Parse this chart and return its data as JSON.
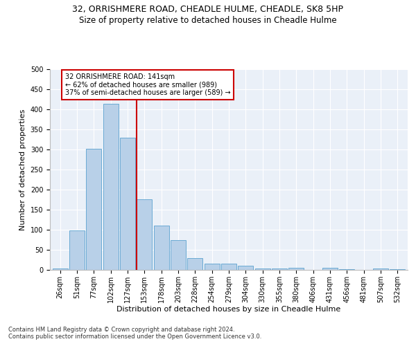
{
  "title1": "32, ORRISHMERE ROAD, CHEADLE HULME, CHEADLE, SK8 5HP",
  "title2": "Size of property relative to detached houses in Cheadle Hulme",
  "xlabel": "Distribution of detached houses by size in Cheadle Hulme",
  "ylabel": "Number of detached properties",
  "categories": [
    "26sqm",
    "51sqm",
    "77sqm",
    "102sqm",
    "127sqm",
    "153sqm",
    "178sqm",
    "203sqm",
    "228sqm",
    "254sqm",
    "279sqm",
    "304sqm",
    "330sqm",
    "355sqm",
    "380sqm",
    "406sqm",
    "431sqm",
    "456sqm",
    "481sqm",
    "507sqm",
    "532sqm"
  ],
  "values": [
    4,
    99,
    302,
    413,
    330,
    176,
    111,
    75,
    30,
    16,
    16,
    10,
    4,
    4,
    5,
    0,
    5,
    1,
    0,
    3,
    1
  ],
  "bar_color": "#b8d0e8",
  "bar_edge_color": "#6aaad4",
  "vline_color": "#cc0000",
  "annotation_text": "32 ORRISHMERE ROAD: 141sqm\n← 62% of detached houses are smaller (989)\n37% of semi-detached houses are larger (589) →",
  "annotation_box_color": "#ffffff",
  "annotation_box_edge": "#cc0000",
  "ylim": [
    0,
    500
  ],
  "yticks": [
    0,
    50,
    100,
    150,
    200,
    250,
    300,
    350,
    400,
    450,
    500
  ],
  "footnote1": "Contains HM Land Registry data © Crown copyright and database right 2024.",
  "footnote2": "Contains public sector information licensed under the Open Government Licence v3.0.",
  "bg_color": "#eaf0f8",
  "title1_fontsize": 9,
  "title2_fontsize": 8.5,
  "xlabel_fontsize": 8,
  "ylabel_fontsize": 8,
  "tick_fontsize": 7,
  "footnote_fontsize": 6
}
